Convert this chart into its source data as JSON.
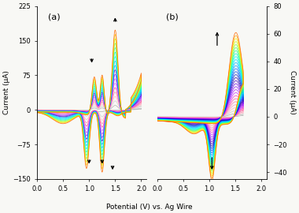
{
  "fig_width": 3.8,
  "fig_height": 2.7,
  "dpi": 100,
  "background_color": "#f8f8f5",
  "panel_a": {
    "label": "(a)",
    "xlim": [
      0.0,
      2.1
    ],
    "ylim": [
      -150,
      225
    ],
    "yticks": [
      -150,
      -75,
      0,
      75,
      150,
      225
    ],
    "xticks": [
      0.0,
      0.5,
      1.0,
      1.5,
      2.0
    ],
    "xlabel": "Potential (V) vs. Ag Wire",
    "ylabel": "Current (μA)",
    "n_cycles": 18
  },
  "panel_b": {
    "label": "(b)",
    "xlim": [
      0.0,
      2.1
    ],
    "ylim": [
      -45,
      80
    ],
    "yticks": [
      -40,
      -20,
      0,
      20,
      40,
      60,
      80
    ],
    "xticks": [
      0.0,
      0.5,
      1.0,
      1.5,
      2.0
    ],
    "ylabel": "Current (μA)",
    "n_cycles": 28
  },
  "cycle_colors_a": [
    "#b0b0b0",
    "#d0d0d0",
    "#ffb6c1",
    "#ff80aa",
    "#ff4488",
    "#cc66ff",
    "#aa44ff",
    "#7722ff",
    "#4400cc",
    "#00aaff",
    "#00ccff",
    "#00eeff",
    "#00ffcc",
    "#44ff88",
    "#88ff44",
    "#ccff00",
    "#ffcc00",
    "#ff6600"
  ],
  "cycle_colors_b": [
    "#b0b0b0",
    "#cccccc",
    "#ffb6c1",
    "#ff99bb",
    "#ff77aa",
    "#ff55aa",
    "#ee44cc",
    "#cc33ff",
    "#aa22ff",
    "#8811ff",
    "#6600ee",
    "#4400cc",
    "#2200aa",
    "#0022cc",
    "#0044ee",
    "#0066ff",
    "#0099ff",
    "#00bbff",
    "#00ddff",
    "#00ffee",
    "#00ffcc",
    "#22ff99",
    "#55ff66",
    "#88ff44",
    "#ccff22",
    "#ffee00",
    "#ffaa00",
    "#ff6600"
  ]
}
